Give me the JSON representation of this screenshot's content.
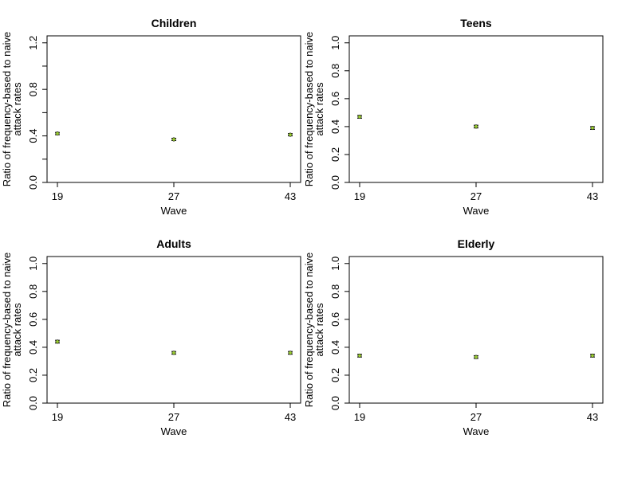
{
  "chart_data": [
    {
      "type": "scatter",
      "title": "Children",
      "xlabel": "Wave",
      "ylabel": [
        "Ratio of frequency-based to naive",
        "attack rates"
      ],
      "categories": [
        "19",
        "27",
        "43"
      ],
      "values": [
        0.42,
        0.37,
        0.41
      ],
      "error": [
        0.01,
        0.01,
        0.01
      ],
      "ylim": [
        0,
        1.26
      ],
      "yticks": [
        "0.0",
        "0.4",
        "0.8",
        "1.2"
      ],
      "ytick_values": [
        0,
        0.4,
        0.8,
        1.2
      ],
      "ytick_minor": [
        0.2,
        0.6,
        1.0
      ],
      "grid": false
    },
    {
      "type": "scatter",
      "title": "Teens",
      "xlabel": "Wave",
      "ylabel": [
        "Ratio of frequency-based to naive",
        "attack rates"
      ],
      "categories": [
        "19",
        "27",
        "43"
      ],
      "values": [
        0.47,
        0.4,
        0.39
      ],
      "error": [
        0.01,
        0.01,
        0.01
      ],
      "ylim": [
        0,
        1.05
      ],
      "yticks": [
        "0.0",
        "0.2",
        "0.4",
        "0.6",
        "0.8",
        "1.0"
      ],
      "ytick_values": [
        0,
        0.2,
        0.4,
        0.6,
        0.8,
        1.0
      ],
      "ytick_minor": [],
      "grid": false
    },
    {
      "type": "scatter",
      "title": "Adults",
      "xlabel": "Wave",
      "ylabel": [
        "Ratio of frequency-based to naive",
        "attack rates"
      ],
      "categories": [
        "19",
        "27",
        "43"
      ],
      "values": [
        0.44,
        0.36,
        0.36
      ],
      "error": [
        0.01,
        0.01,
        0.01
      ],
      "ylim": [
        0,
        1.05
      ],
      "yticks": [
        "0.0",
        "0.2",
        "0.4",
        "0.6",
        "0.8",
        "1.0"
      ],
      "ytick_values": [
        0,
        0.2,
        0.4,
        0.6,
        0.8,
        1.0
      ],
      "ytick_minor": [],
      "grid": false
    },
    {
      "type": "scatter",
      "title": "Elderly",
      "xlabel": "Wave",
      "ylabel": [
        "Ratio of frequency-based to naive",
        "attack rates"
      ],
      "categories": [
        "19",
        "27",
        "43"
      ],
      "values": [
        0.34,
        0.33,
        0.34
      ],
      "error": [
        0.01,
        0.01,
        0.01
      ],
      "ylim": [
        0,
        1.05
      ],
      "yticks": [
        "0.0",
        "0.2",
        "0.4",
        "0.6",
        "0.8",
        "1.0"
      ],
      "ytick_values": [
        0,
        0.2,
        0.4,
        0.6,
        0.8,
        1.0
      ],
      "ytick_minor": [],
      "grid": false
    }
  ]
}
